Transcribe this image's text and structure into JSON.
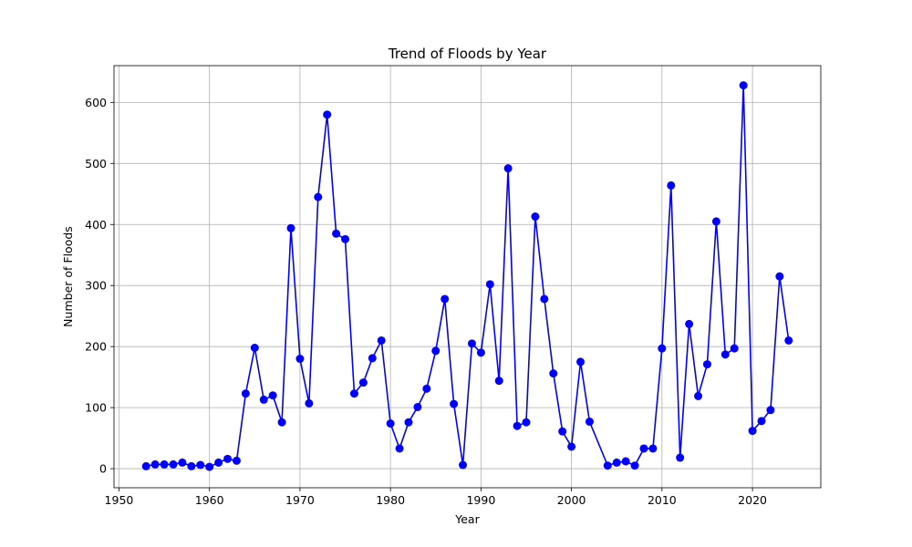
{
  "chart_data": {
    "type": "line",
    "title": "Trend of Floods by Year",
    "xlabel": "Year",
    "ylabel": "Number of Floods",
    "xlim": [
      1949.45,
      2027.55
    ],
    "ylim": [
      -31.25,
      660.25
    ],
    "xticks": [
      1950,
      1960,
      1970,
      1980,
      1990,
      2000,
      2010,
      2020
    ],
    "yticks": [
      0,
      100,
      200,
      300,
      400,
      500,
      600
    ],
    "grid": true,
    "series": [
      {
        "color": "#0000ff",
        "marker": "circle",
        "x": [
          1953,
          1954,
          1955,
          1956,
          1957,
          1958,
          1959,
          1960,
          1961,
          1962,
          1963,
          1964,
          1965,
          1966,
          1967,
          1968,
          1969,
          1970,
          1971,
          1972,
          1973,
          1974,
          1975,
          1976,
          1977,
          1978,
          1979,
          1980,
          1981,
          1982,
          1983,
          1984,
          1985,
          1986,
          1987,
          1988,
          1989,
          1990,
          1991,
          1992,
          1993,
          1994,
          1995,
          1996,
          1997,
          1998,
          1999,
          2000,
          2001,
          2002,
          2004,
          2005,
          2006,
          2007,
          2008,
          2009,
          2010,
          2011,
          2012,
          2013,
          2014,
          2015,
          2016,
          2017,
          2018,
          2019,
          2020,
          2021,
          2022,
          2023,
          2024
        ],
        "y": [
          4,
          7,
          7,
          7,
          10,
          4,
          6,
          3,
          10,
          16,
          13,
          123,
          198,
          113,
          120,
          76,
          394,
          180,
          107,
          445,
          580,
          385,
          376,
          123,
          141,
          181,
          210,
          74,
          33,
          76,
          101,
          131,
          193,
          278,
          106,
          6,
          205,
          190,
          302,
          144,
          492,
          70,
          76,
          413,
          278,
          156,
          61,
          36,
          175,
          77,
          5,
          10,
          12,
          5,
          33,
          33,
          197,
          464,
          18,
          237,
          119,
          171,
          405,
          187,
          197,
          628,
          62,
          78,
          96,
          315,
          210
        ]
      }
    ]
  }
}
